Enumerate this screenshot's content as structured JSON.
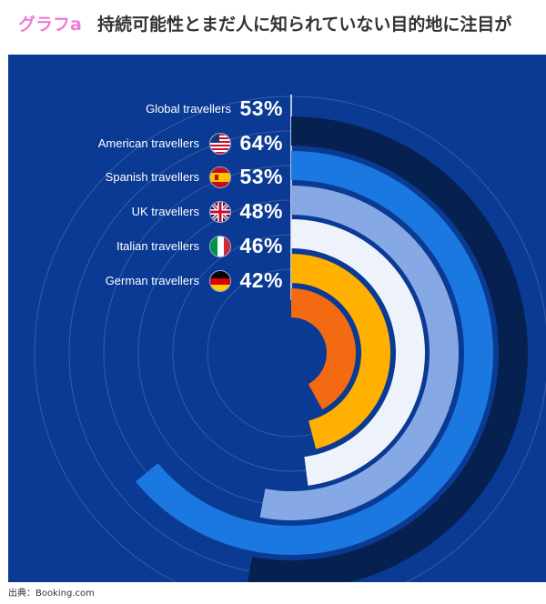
{
  "header": {
    "tag": "グラフa",
    "title": "持続可能性とまだ人に知られていない目的地に注目が"
  },
  "source": "出典：Booking.com",
  "colors": {
    "background": "#0a3a93",
    "global": "#06204f",
    "american": "#1a78e0",
    "spanish": "#86a8e4",
    "uk": "#eef2fb",
    "italian": "#ffb000",
    "german": "#f46a12"
  },
  "chart_data": {
    "type": "radial-bar",
    "title": "",
    "categories": [
      "Global travellers",
      "American travellers",
      "Spanish travellers",
      "UK travellers",
      "Italian travellers",
      "German travellers"
    ],
    "values": [
      53,
      64,
      53,
      48,
      46,
      42
    ],
    "value_labels": [
      "53%",
      "64%",
      "53%",
      "48%",
      "46%",
      "42%"
    ],
    "flags": [
      "none",
      "us-flag-icon",
      "spain-flag-icon",
      "uk-flag-icon",
      "italy-flag-icon",
      "germany-flag-icon"
    ],
    "unit": "%"
  }
}
